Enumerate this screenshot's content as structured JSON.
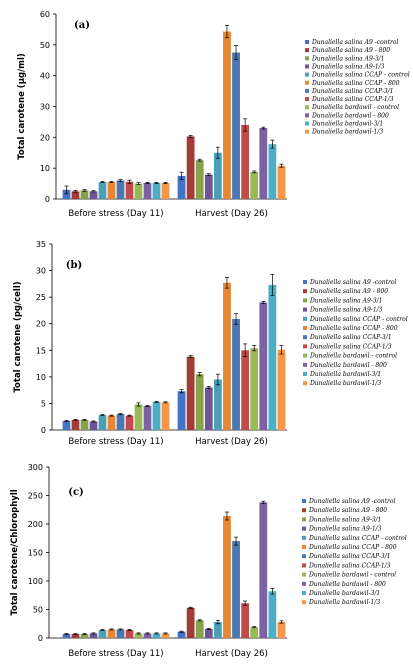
{
  "colors": [
    "#4472C4",
    "#A33C39",
    "#86A24A",
    "#6E5396",
    "#4BA0B8",
    "#E88733",
    "#4A78B5",
    "#C04B4A",
    "#98B954",
    "#7D61A0",
    "#4BAFC6",
    "#F79646"
  ],
  "chart_data": [
    {
      "type": "bar",
      "panel": "(a)",
      "ylabel": "Total carotene (μg/ml)",
      "ylim": [
        0,
        60
      ],
      "yticks": [
        "0",
        "10",
        "20",
        "30",
        "40",
        "50",
        "60"
      ],
      "categories": [
        "Before stress (Day 11)",
        "Harvest (Day 26)"
      ],
      "legend_position": "right",
      "series": [
        {
          "name": "Dunaliella salina A9 -control",
          "values": [
            3.0,
            7.5
          ],
          "errors": [
            1.2,
            1.2
          ]
        },
        {
          "name": "Dunaliella salina A9 - 800",
          "values": [
            2.5,
            20.3
          ],
          "errors": [
            0.3,
            0.3
          ]
        },
        {
          "name": "Dunaliella salina A9-3/1",
          "values": [
            2.8,
            12.6
          ],
          "errors": [
            0.3,
            0.3
          ]
        },
        {
          "name": "Dunaliella salina A9-1/3",
          "values": [
            2.5,
            7.9
          ],
          "errors": [
            0.2,
            0.3
          ]
        },
        {
          "name": "Dunaliella salina CCAP - control",
          "values": [
            5.5,
            15.0
          ],
          "errors": [
            0.2,
            1.8
          ]
        },
        {
          "name": "Dunaliella salina CCAP - 800",
          "values": [
            5.5,
            54.3
          ],
          "errors": [
            0.2,
            2.0
          ]
        },
        {
          "name": "Dunaliella salina CCAP-3/1",
          "values": [
            6.0,
            47.5
          ],
          "errors": [
            0.3,
            2.3
          ]
        },
        {
          "name": "Dunaliella salina CCAP-1/3",
          "values": [
            5.6,
            24.0
          ],
          "errors": [
            0.5,
            2.0
          ]
        },
        {
          "name": "Dunaliella bardawil - control",
          "values": [
            5.0,
            8.8
          ],
          "errors": [
            0.3,
            0.3
          ]
        },
        {
          "name": "Dunaliella bardawil - 800",
          "values": [
            5.2,
            23.0
          ],
          "errors": [
            0.2,
            0.3
          ]
        },
        {
          "name": "Dunaliella bardawil-3/1",
          "values": [
            5.2,
            17.8
          ],
          "errors": [
            0.2,
            1.3
          ]
        },
        {
          "name": "Dunaliella bardawil-1/3",
          "values": [
            5.2,
            10.8
          ],
          "errors": [
            0.2,
            0.5
          ]
        }
      ]
    },
    {
      "type": "bar",
      "panel": "(b)",
      "ylabel": "Total carotene (pg/cell)",
      "ylim": [
        0,
        35
      ],
      "yticks": [
        "0",
        "5",
        "10",
        "15",
        "20",
        "25",
        "30",
        "35"
      ],
      "categories": [
        "Before stress (Day 11)",
        "Harvest (Day 26)"
      ],
      "legend_position": "right",
      "series": [
        {
          "name": "Dunaliella salina A9 -control",
          "values": [
            1.7,
            7.3
          ],
          "errors": [
            0.1,
            0.3
          ]
        },
        {
          "name": "Dunaliella salina A9 - 800",
          "values": [
            1.9,
            13.8
          ],
          "errors": [
            0.1,
            0.2
          ]
        },
        {
          "name": "Dunaliella salina A9-3/1",
          "values": [
            1.9,
            10.5
          ],
          "errors": [
            0.1,
            0.3
          ]
        },
        {
          "name": "Dunaliella salina A9-1/3",
          "values": [
            1.6,
            8.0
          ],
          "errors": [
            0.1,
            0.2
          ]
        },
        {
          "name": "Dunaliella salina CCAP - control",
          "values": [
            2.8,
            9.5
          ],
          "errors": [
            0.1,
            1.0
          ]
        },
        {
          "name": "Dunaliella salina CCAP - 800",
          "values": [
            2.7,
            27.7
          ],
          "errors": [
            0.1,
            1.0
          ]
        },
        {
          "name": "Dunaliella salina CCAP-3/1",
          "values": [
            3.0,
            20.9
          ],
          "errors": [
            0.1,
            1.0
          ]
        },
        {
          "name": "Dunaliella salina CCAP-1/3",
          "values": [
            2.7,
            15.0
          ],
          "errors": [
            0.1,
            1.2
          ]
        },
        {
          "name": "Dunaliella bardawil - control",
          "values": [
            4.8,
            15.4
          ],
          "errors": [
            0.3,
            0.5
          ]
        },
        {
          "name": "Dunaliella bardawil - 800",
          "values": [
            4.5,
            24.0
          ],
          "errors": [
            0.1,
            0.2
          ]
        },
        {
          "name": "Dunaliella bardawil-3/1",
          "values": [
            5.3,
            27.3
          ],
          "errors": [
            0.1,
            2.0
          ]
        },
        {
          "name": "Dunaliella bardawil-1/3",
          "values": [
            5.2,
            15.1
          ],
          "errors": [
            0.1,
            0.8
          ]
        }
      ]
    },
    {
      "type": "bar",
      "panel": "(c)",
      "ylabel": "Total carotene/Chlorophyll",
      "ylim": [
        0,
        300
      ],
      "yticks": [
        "0",
        "50",
        "100",
        "150",
        "200",
        "250",
        "300"
      ],
      "categories": [
        "Before stress (Day 11)",
        "Harvest (Day 26)"
      ],
      "legend_position": "right",
      "series": [
        {
          "name": "Dunaliella salina A9 -control",
          "values": [
            7,
            11
          ],
          "errors": [
            1,
            1
          ]
        },
        {
          "name": "Dunaliella salina A9 - 800",
          "values": [
            7,
            53
          ],
          "errors": [
            1,
            1
          ]
        },
        {
          "name": "Dunaliella salina A9-3/1",
          "values": [
            7,
            31
          ],
          "errors": [
            1,
            1
          ]
        },
        {
          "name": "Dunaliella salina A9-1/3",
          "values": [
            8,
            16
          ],
          "errors": [
            1,
            1
          ]
        },
        {
          "name": "Dunaliella salina CCAP - control",
          "values": [
            14,
            28
          ],
          "errors": [
            1,
            3
          ]
        },
        {
          "name": "Dunaliella salina CCAP - 800",
          "values": [
            15,
            214
          ],
          "errors": [
            1,
            7
          ]
        },
        {
          "name": "Dunaliella salina CCAP-3/1",
          "values": [
            15,
            170
          ],
          "errors": [
            1,
            7
          ]
        },
        {
          "name": "Dunaliella salina CCAP-1/3",
          "values": [
            14,
            61
          ],
          "errors": [
            1,
            4
          ]
        },
        {
          "name": "Dunaliella bardawil - control",
          "values": [
            8,
            19
          ],
          "errors": [
            1,
            1
          ]
        },
        {
          "name": "Dunaliella bardawil - 800",
          "values": [
            8,
            238
          ],
          "errors": [
            1,
            2
          ]
        },
        {
          "name": "Dunaliella bardawil-3/1",
          "values": [
            8,
            82
          ],
          "errors": [
            1,
            5
          ]
        },
        {
          "name": "Dunaliella bardawil-1/3",
          "values": [
            8,
            28
          ],
          "errors": [
            1,
            2
          ]
        }
      ]
    }
  ]
}
